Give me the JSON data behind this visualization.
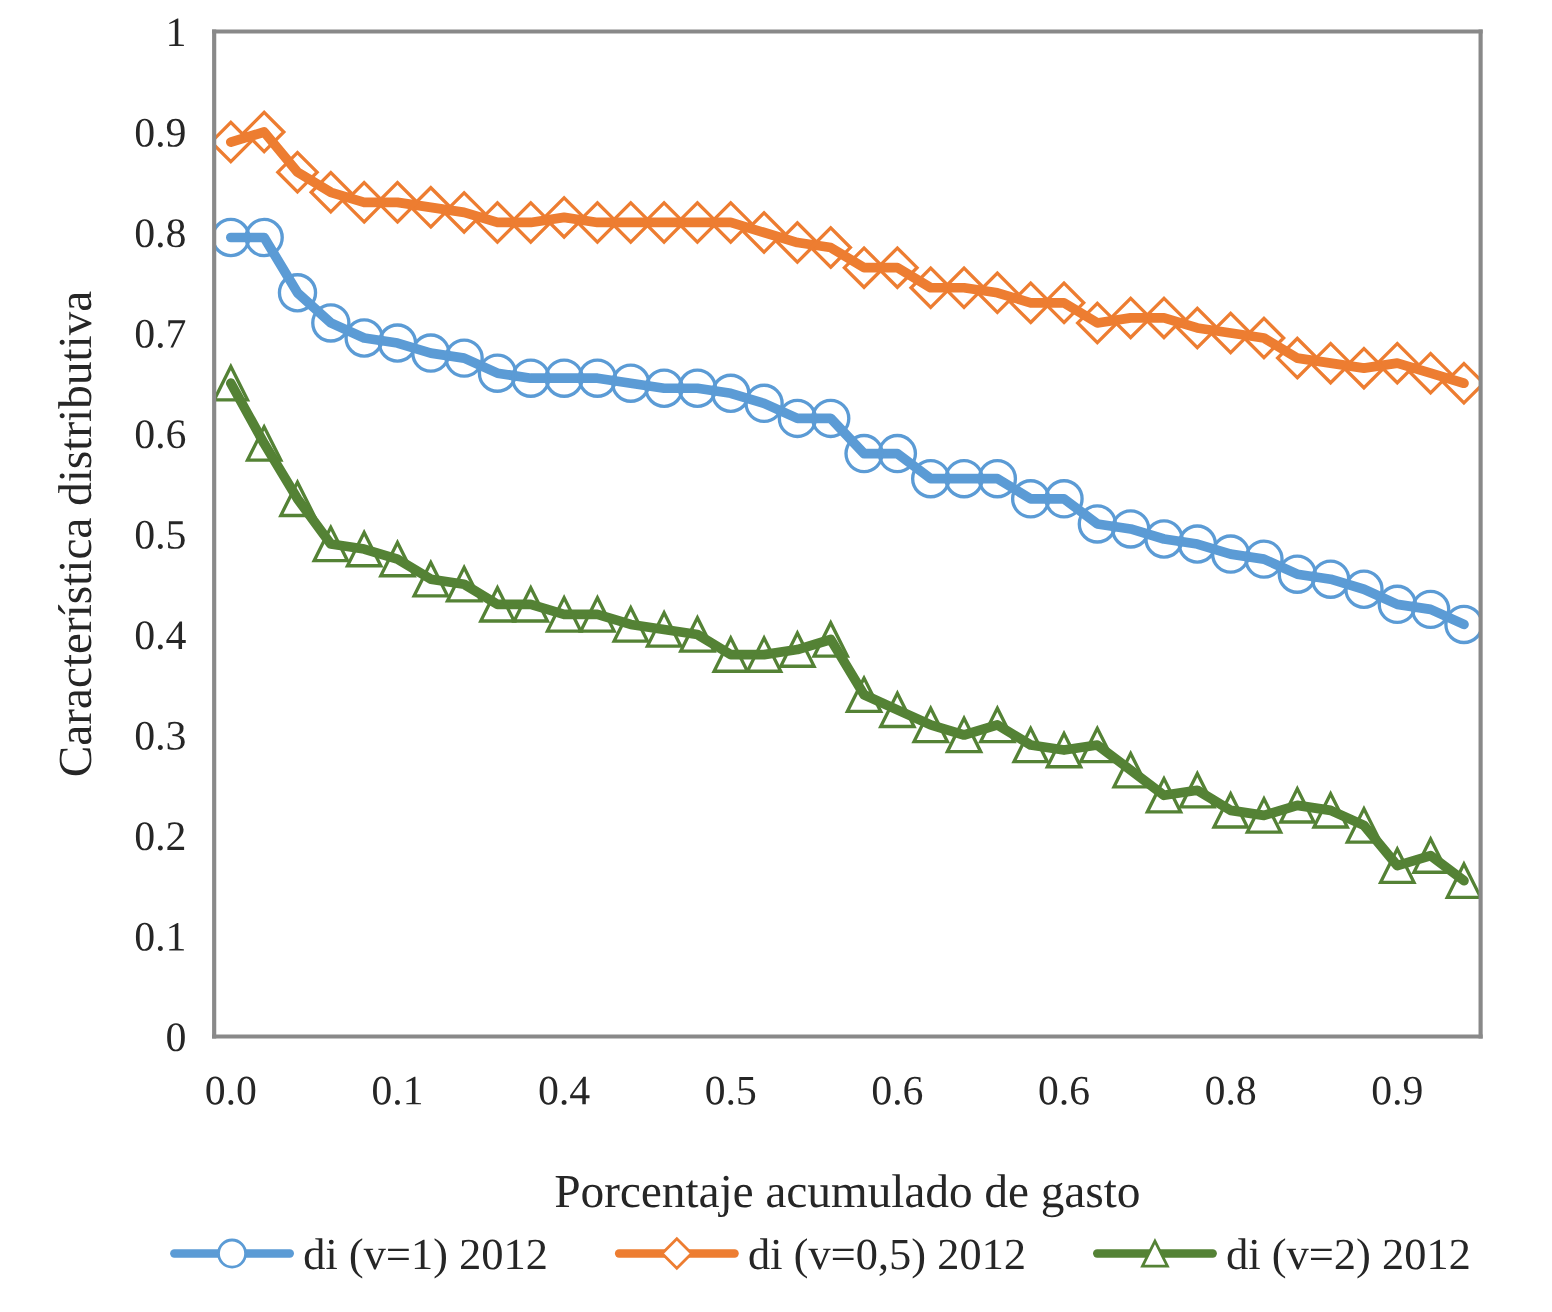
{
  "chart_data": {
    "type": "line",
    "xlabel": "Porcentaje acumulado de gasto",
    "ylabel": "Característica distributiva",
    "categories": [
      "0.0",
      null,
      null,
      null,
      null,
      "0.1",
      null,
      null,
      null,
      null,
      "0.4",
      null,
      null,
      null,
      null,
      "0.5",
      null,
      null,
      null,
      null,
      "0.6",
      null,
      null,
      null,
      null,
      "0.6",
      null,
      null,
      null,
      null,
      "0.8",
      null,
      null,
      null,
      null,
      "0.9",
      null,
      null
    ],
    "series": [
      {
        "name": "di (v=1) 2012",
        "color": "#5b9bd5",
        "marker": "circle",
        "values": [
          0.795,
          0.795,
          0.74,
          0.71,
          0.695,
          0.69,
          0.68,
          0.675,
          0.66,
          0.655,
          0.655,
          0.655,
          0.65,
          0.645,
          0.645,
          0.64,
          0.63,
          0.615,
          0.615,
          0.58,
          0.58,
          0.555,
          0.555,
          0.555,
          0.535,
          0.535,
          0.51,
          0.505,
          0.495,
          0.49,
          0.48,
          0.475,
          0.46,
          0.455,
          0.445,
          0.43,
          0.425,
          0.41
        ]
      },
      {
        "name": "di (v=0,5) 2012",
        "color": "#ed7d31",
        "marker": "diamond",
        "values": [
          0.89,
          0.9,
          0.86,
          0.84,
          0.83,
          0.83,
          0.825,
          0.82,
          0.81,
          0.81,
          0.815,
          0.81,
          0.81,
          0.81,
          0.81,
          0.81,
          0.8,
          0.79,
          0.785,
          0.765,
          0.765,
          0.745,
          0.745,
          0.74,
          0.73,
          0.73,
          0.71,
          0.715,
          0.715,
          0.705,
          0.7,
          0.695,
          0.675,
          0.67,
          0.665,
          0.67,
          0.66,
          0.65
        ]
      },
      {
        "name": "di (v=2) 2012",
        "color": "#548235",
        "marker": "triangle",
        "values": [
          0.65,
          0.59,
          0.535,
          0.49,
          0.485,
          0.475,
          0.455,
          0.45,
          0.43,
          0.43,
          0.42,
          0.42,
          0.41,
          0.405,
          0.4,
          0.38,
          0.38,
          0.385,
          0.395,
          0.34,
          0.325,
          0.31,
          0.3,
          0.31,
          0.29,
          0.285,
          0.29,
          0.265,
          0.24,
          0.245,
          0.225,
          0.22,
          0.23,
          0.225,
          0.21,
          0.17,
          0.18,
          0.155
        ]
      }
    ],
    "ylim": [
      0,
      1
    ],
    "yticks": [
      0,
      0.1,
      0.2,
      0.3,
      0.4,
      0.5,
      0.6,
      0.7,
      0.8,
      0.9,
      1
    ],
    "grid": false,
    "legend": "bottom",
    "line_style": "solid"
  }
}
